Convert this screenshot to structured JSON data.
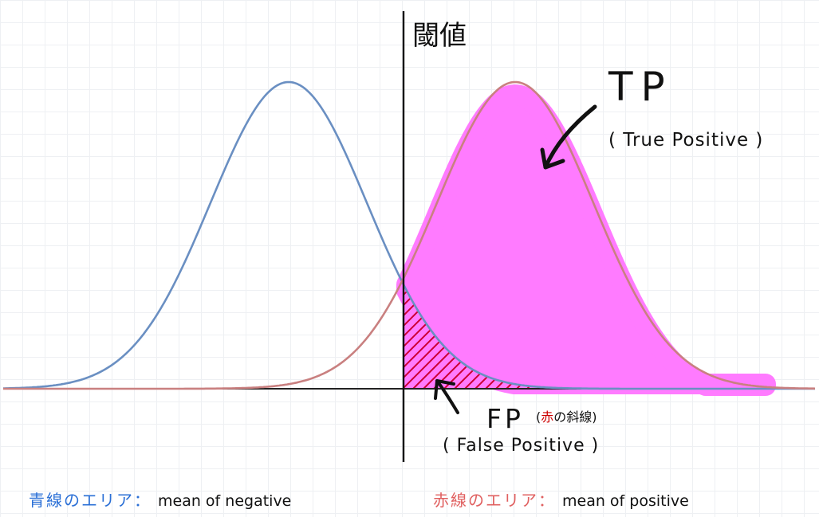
{
  "threshold_label": "閾値",
  "tp": {
    "label": "TP",
    "sub": "( True Positive )"
  },
  "fp": {
    "label": "FP",
    "note_open": "(",
    "note_red": "赤",
    "note_rest": "の斜線",
    "note_close": ")",
    "sub": "( False Positive )"
  },
  "legend": {
    "negative": {
      "area": "青線のエリア：",
      "text": "mean of negative"
    },
    "positive": {
      "area": "赤線のエリア：",
      "text": "mean of positive"
    }
  },
  "colors": {
    "negative_curve": "#6a8fc2",
    "positive_curve": "#c98080",
    "tp_fill": "#ff7bff",
    "fp_hatch": "#cc0033",
    "legend_negative_text": "#2a6fd6",
    "legend_positive_text": "#e06060"
  },
  "icons": [
    "arrow-to-tp-icon",
    "arrow-to-fp-icon"
  ]
}
